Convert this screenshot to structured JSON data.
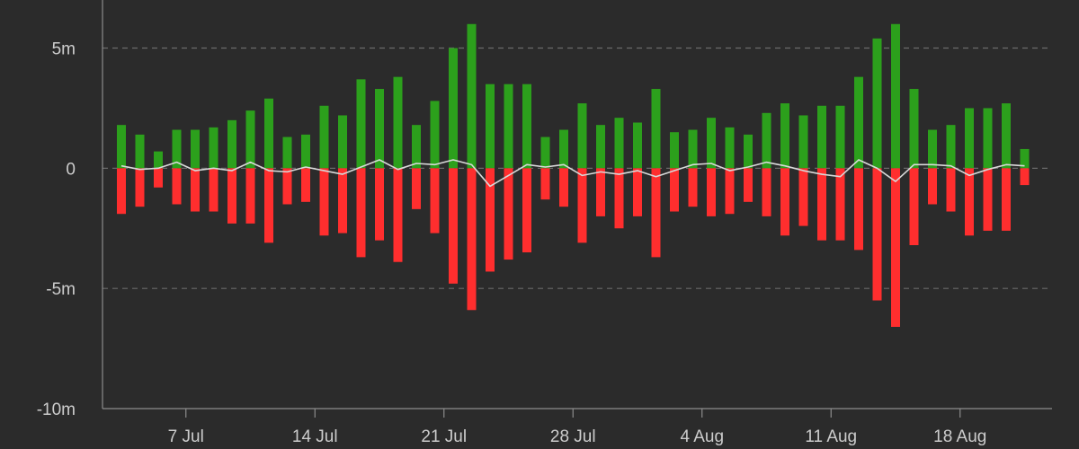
{
  "chart_data": {
    "type": "bar",
    "ylim": [
      -10000000,
      7000000
    ],
    "y_ticks": [
      {
        "value": 5000000,
        "label": "5m"
      },
      {
        "value": 0,
        "label": "0"
      },
      {
        "value": -5000000,
        "label": "-5m"
      },
      {
        "value": -10000000,
        "label": "-10m"
      }
    ],
    "x_ticks": [
      {
        "index": 3.5,
        "label": "7 Jul"
      },
      {
        "index": 10.5,
        "label": "14 Jul"
      },
      {
        "index": 17.5,
        "label": "21 Jul"
      },
      {
        "index": 24.5,
        "label": "28 Jul"
      },
      {
        "index": 31.5,
        "label": "4 Aug"
      },
      {
        "index": 38.5,
        "label": "11 Aug"
      },
      {
        "index": 45.5,
        "label": "18 Aug"
      }
    ],
    "grid": {
      "horizontal": true,
      "style": "dashed"
    },
    "colors": {
      "background": "#2b2b2b",
      "positive": "#2ca01c",
      "negative": "#ff2e2e",
      "net_line": "#d9d9d9",
      "axis": "#8c8c8c",
      "grid": "#6b6b6b",
      "tick_label": "#cccccc"
    },
    "series": [
      {
        "values": [
          1800000,
          1400000,
          700000,
          1600000,
          1600000,
          1700000,
          2000000,
          2400000,
          2900000,
          1300000,
          1400000,
          2600000,
          2200000,
          3700000,
          3300000,
          3800000,
          1800000,
          2800000,
          5000000,
          6000000,
          3500000,
          3500000,
          3500000,
          1300000,
          1600000,
          2700000,
          1800000,
          2100000,
          1900000,
          3300000,
          1500000,
          1600000,
          2100000,
          1700000,
          1400000,
          2300000,
          2700000,
          2200000,
          2600000,
          2600000,
          3800000,
          5400000,
          6000000,
          3300000,
          1600000,
          1800000,
          2500000,
          2500000,
          2700000,
          800000
        ]
      },
      {
        "values": [
          -1900000,
          -1600000,
          -800000,
          -1500000,
          -1800000,
          -1800000,
          -2300000,
          -2300000,
          -3100000,
          -1500000,
          -1400000,
          -2800000,
          -2700000,
          -3700000,
          -3000000,
          -3900000,
          -1700000,
          -2700000,
          -4800000,
          -5900000,
          -4300000,
          -3800000,
          -3500000,
          -1300000,
          -1600000,
          -3100000,
          -2000000,
          -2500000,
          -2000000,
          -3700000,
          -1800000,
          -1600000,
          -2000000,
          -1900000,
          -1400000,
          -2000000,
          -2800000,
          -2400000,
          -3000000,
          -3000000,
          -3400000,
          -5500000,
          -6600000,
          -3200000,
          -1500000,
          -1800000,
          -2800000,
          -2600000,
          -2600000,
          -700000
        ]
      },
      {
        "type": "line",
        "values": [
          100000,
          -50000,
          0,
          250000,
          -100000,
          0,
          -100000,
          250000,
          -100000,
          -150000,
          50000,
          -100000,
          -250000,
          50000,
          350000,
          -50000,
          200000,
          150000,
          350000,
          150000,
          -750000,
          -300000,
          150000,
          50000,
          150000,
          -300000,
          -150000,
          -250000,
          -100000,
          -350000,
          -100000,
          150000,
          200000,
          -100000,
          50000,
          250000,
          100000,
          -100000,
          -250000,
          -350000,
          350000,
          0,
          -550000,
          150000,
          150000,
          100000,
          -300000,
          -50000,
          150000,
          100000
        ]
      }
    ]
  }
}
